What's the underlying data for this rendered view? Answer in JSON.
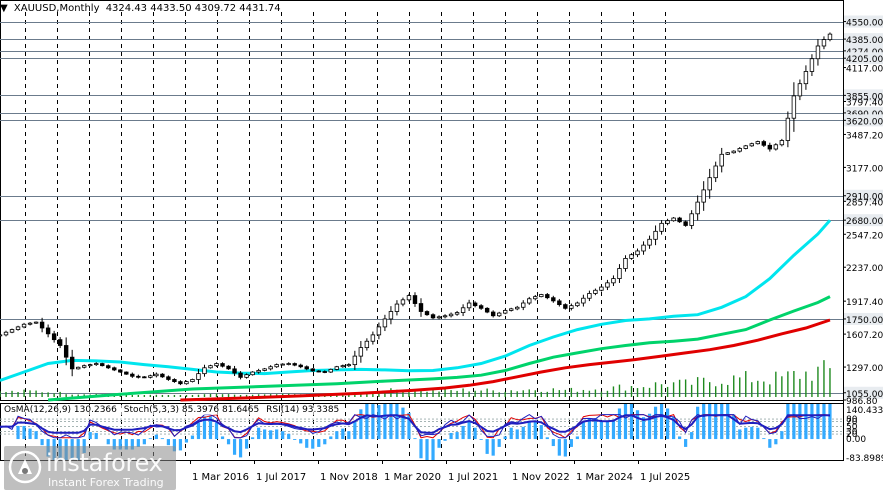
{
  "header": {
    "symbol": "XAUUSD,Monthly",
    "ohlc": "4324.43 4433.50 4309.72 4431.74",
    "collapse_icon": "triangle-down-icon"
  },
  "indicators_label": {
    "osma": "OsMA(12,26,9) 130.2366",
    "stoch": "Stoch(5,3,3) 85.3976 81.6465",
    "rsi": "RSI(14) 93.3385"
  },
  "watermark": {
    "brand": "instaforex",
    "tagline": "Instant Forex Trading",
    "logo_icon": "instaforex-logo-icon"
  },
  "colors": {
    "candle": "#000000",
    "ema_fast": "#00e5ee",
    "ema_mid": "#00d36b",
    "ema_slow": "#e00000",
    "volume": "#1f8a1f",
    "osma": "#33aaff",
    "stoch_main": "#1f1fbf",
    "stoch_signal": "#e00000",
    "rsi": "#1f1fbf",
    "level_line": "#6b7b8c"
  },
  "chart_data": [
    {
      "type": "candlestick",
      "title": "XAUUSD,Monthly",
      "x_labels": [
        "1 Mar 2016",
        "1 Jul 2017",
        "1 Nov 2018",
        "1 Mar 2020",
        "1 Jul 2021",
        "1 Nov 2022",
        "1 Mar 2024",
        "1 Jul 2025"
      ],
      "y_tick_labels": [
        "4550.00",
        "4385.00",
        "4274.00",
        "4205.00",
        "4117.00",
        "3855.00",
        "3797.40",
        "3690.00",
        "3620.00",
        "3487.20",
        "3177.00",
        "2910.00",
        "2857.40",
        "2680.00",
        "2547.20",
        "2237.00",
        "1917.40",
        "1750.00",
        "1607.20",
        "1297.00",
        "1055.00",
        "986.80"
      ],
      "ylim": [
        986.8,
        4640
      ],
      "level_lines": [
        4550,
        4385,
        4274,
        4205,
        3855,
        3690,
        3620,
        2910,
        2680,
        1750,
        1055
      ],
      "ohlc_last": {
        "open": 4324.43,
        "high": 4433.5,
        "low": 4309.72,
        "close": 4431.74
      },
      "series": [
        {
          "name": "EMA fast",
          "color": "#00e5ee",
          "x": [
            0,
            4,
            8,
            12,
            16,
            20,
            24,
            28,
            32,
            36,
            40,
            44,
            48,
            52,
            56,
            60,
            64,
            68,
            72,
            76,
            80,
            84,
            88,
            92,
            96,
            100,
            104,
            108,
            112,
            116,
            120,
            124,
            128,
            132,
            136,
            138
          ],
          "y": [
            1170,
            1250,
            1330,
            1360,
            1355,
            1345,
            1320,
            1300,
            1275,
            1250,
            1240,
            1235,
            1250,
            1265,
            1270,
            1275,
            1270,
            1262,
            1265,
            1290,
            1330,
            1400,
            1500,
            1580,
            1650,
            1700,
            1735,
            1750,
            1775,
            1790,
            1860,
            1960,
            2130,
            2350,
            2550,
            2680
          ]
        },
        {
          "name": "EMA mid",
          "color": "#00d36b",
          "x": [
            8,
            20,
            32,
            44,
            56,
            64,
            72,
            76,
            80,
            84,
            88,
            92,
            96,
            100,
            104,
            108,
            112,
            116,
            120,
            124,
            128,
            132,
            136,
            138
          ],
          "y": [
            986.8,
            1040,
            1090,
            1115,
            1140,
            1165,
            1185,
            1200,
            1220,
            1265,
            1330,
            1390,
            1430,
            1470,
            1500,
            1525,
            1540,
            1560,
            1605,
            1650,
            1740,
            1825,
            1905,
            1960
          ]
        },
        {
          "name": "EMA slow",
          "color": "#e00000",
          "x": [
            30,
            40,
            50,
            60,
            68,
            74,
            78,
            82,
            86,
            90,
            94,
            98,
            102,
            106,
            110,
            114,
            118,
            122,
            126,
            130,
            134,
            138
          ],
          "y": [
            986.8,
            1005,
            1025,
            1050,
            1075,
            1100,
            1125,
            1160,
            1205,
            1250,
            1290,
            1320,
            1345,
            1370,
            1400,
            1430,
            1460,
            1500,
            1550,
            1610,
            1665,
            1740
          ]
        },
        {
          "name": "Close",
          "color": "#000000",
          "x": [
            0,
            2,
            4,
            6,
            8,
            10,
            12,
            14,
            16,
            18,
            20,
            22,
            24,
            26,
            28,
            30,
            32,
            34,
            36,
            38,
            40,
            42,
            44,
            46,
            48,
            50,
            52,
            54,
            56,
            58,
            60,
            62,
            64,
            66,
            68,
            70,
            72,
            74,
            76,
            78,
            80,
            82,
            84,
            86,
            88,
            90,
            92,
            94,
            96,
            98,
            100,
            102,
            104,
            106,
            108,
            110,
            112,
            114,
            116,
            118,
            120,
            122,
            124,
            126,
            128,
            130,
            132,
            134,
            135,
            136,
            137,
            138
          ],
          "y": [
            1600,
            1650,
            1700,
            1720,
            1610,
            1500,
            1280,
            1310,
            1330,
            1290,
            1250,
            1210,
            1200,
            1230,
            1180,
            1140,
            1180,
            1290,
            1330,
            1280,
            1200,
            1250,
            1280,
            1320,
            1330,
            1300,
            1260,
            1250,
            1300,
            1320,
            1480,
            1600,
            1750,
            1890,
            1970,
            1820,
            1760,
            1780,
            1810,
            1900,
            1850,
            1780,
            1830,
            1860,
            1940,
            1980,
            1920,
            1850,
            1900,
            1990,
            2050,
            2130,
            2320,
            2390,
            2500,
            2650,
            2700,
            2630,
            2850,
            3080,
            3300,
            3330,
            3380,
            3420,
            3350,
            3430,
            3850,
            4080,
            4200,
            4320,
            4380,
            4431.74
          ]
        }
      ]
    },
    {
      "type": "line",
      "title": "OsMA(12,26,9) / Stoch(5,3,3) / RSI(14)",
      "osma_value": 130.2366,
      "stoch_main": 85.3976,
      "stoch_signal": 81.6465,
      "rsi_value": 93.3385,
      "y_tick_labels": [
        "140.4335",
        "80",
        "70",
        "50",
        "30",
        "20",
        "0.00",
        "-83.8989"
      ],
      "levels": [
        80,
        70,
        50,
        30,
        20
      ],
      "ylim": [
        -83.8989,
        140.4335
      ]
    }
  ]
}
